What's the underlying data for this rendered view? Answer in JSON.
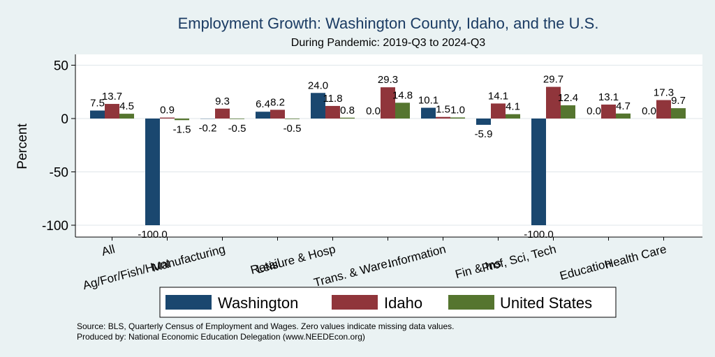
{
  "chart_data": {
    "type": "bar",
    "title": "Employment Growth: Washington County, Idaho, and the U.S.",
    "subtitle": "During Pandemic: 2019-Q3 to 2024-Q3",
    "ylabel": "Percent",
    "xlabel": "",
    "ylim": [
      -110,
      55
    ],
    "yticks": [
      50,
      0,
      -50,
      -100
    ],
    "grid": true,
    "legend_position": "bottom",
    "categories": [
      "All",
      "Ag/For/Fish/Hunt",
      "Manufacturing",
      "Retail",
      "Leisure & Hosp",
      "Trans. & Ware.",
      "Information",
      "Fin & Ins",
      "Prof, Sci, Tech",
      "Education",
      "Health Care"
    ],
    "series": [
      {
        "name": "Washington",
        "color": "#1a476f",
        "values": [
          7.5,
          -100.0,
          -0.2,
          6.4,
          24.0,
          0.0,
          10.1,
          -5.9,
          -100.0,
          0.0,
          0.0
        ],
        "labels": [
          "7.5",
          "-100.0",
          "-0.2",
          "6.4",
          "24.0",
          "0.0",
          "10.1",
          "-5.9",
          "-100.0",
          "0.0",
          "0.0"
        ]
      },
      {
        "name": "Idaho",
        "color": "#90353b",
        "values": [
          13.7,
          0.9,
          9.3,
          8.2,
          11.8,
          29.3,
          1.5,
          14.1,
          29.7,
          13.1,
          17.3
        ],
        "labels": [
          "13.7",
          "0.9",
          "9.3",
          "8.2",
          "11.8",
          "29.3",
          "1.5",
          "14.1",
          "29.7",
          "13.1",
          "17.3"
        ]
      },
      {
        "name": "United States",
        "color": "#55752f",
        "values": [
          4.5,
          -1.5,
          -0.5,
          -0.5,
          0.8,
          14.8,
          1.0,
          4.1,
          12.4,
          4.7,
          9.7
        ],
        "labels": [
          "4.5",
          "-1.5",
          "-0.5",
          "-0.5",
          "0.8",
          "14.8",
          "1.0",
          "4.1",
          "12.4",
          "4.7",
          "9.7"
        ]
      }
    ],
    "notes": [
      "Source: BLS, Quarterly Census of Employment and Wages. Zero values indicate missing data values.",
      "Produced by: National Economic Education Delegation (www.NEEDEcon.org)"
    ]
  }
}
